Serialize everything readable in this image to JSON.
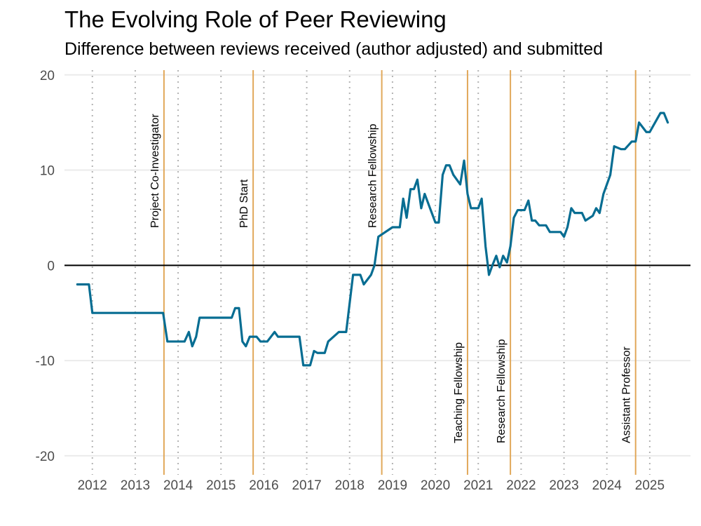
{
  "chart_data": {
    "type": "line",
    "title": "The Evolving Role of Peer Reviewing",
    "subtitle": "Difference between reviews received (author adjusted) and submitted",
    "xlabel": "",
    "ylabel": "",
    "xlim": [
      2011.35,
      2025.95
    ],
    "ylim": [
      -22,
      20.5
    ],
    "grid": true,
    "x_ticks": [
      {
        "value": 2012,
        "label": "2012"
      },
      {
        "value": 2013,
        "label": "2013"
      },
      {
        "value": 2014,
        "label": "2014"
      },
      {
        "value": 2015,
        "label": "2015"
      },
      {
        "value": 2016,
        "label": "2016"
      },
      {
        "value": 2017,
        "label": "2017"
      },
      {
        "value": 2018,
        "label": "2018"
      },
      {
        "value": 2019,
        "label": "2019"
      },
      {
        "value": 2020,
        "label": "2020"
      },
      {
        "value": 2021,
        "label": "2021"
      },
      {
        "value": 2022,
        "label": "2022"
      },
      {
        "value": 2023,
        "label": "2023"
      },
      {
        "value": 2024,
        "label": "2024"
      },
      {
        "value": 2025,
        "label": "2025"
      }
    ],
    "y_ticks": [
      {
        "value": 20,
        "label": "20"
      },
      {
        "value": 10,
        "label": "10"
      },
      {
        "value": 0,
        "label": "0"
      },
      {
        "value": -10,
        "label": "-10"
      },
      {
        "value": -20,
        "label": "-20"
      }
    ],
    "colors": {
      "line": "#076d92",
      "event": "#e1a85a",
      "zero_line": "#000000",
      "grid": "#ebebeb",
      "year_grid": "#b3b3b3"
    },
    "events": [
      {
        "x": 2013.67,
        "label": "Project Co-Investigator",
        "position": "top"
      },
      {
        "x": 2015.75,
        "label": "PhD Start",
        "position": "top"
      },
      {
        "x": 2018.75,
        "label": "Research Fellowship",
        "position": "top"
      },
      {
        "x": 2020.75,
        "label": "Teaching Fellowship",
        "position": "bottom"
      },
      {
        "x": 2021.75,
        "label": "Research Fellowship",
        "position": "bottom"
      },
      {
        "x": 2024.67,
        "label": "Assistant Professor",
        "position": "bottom"
      }
    ],
    "series": [
      {
        "name": "Difference",
        "x": [
          2011.65,
          2011.92,
          2012.0,
          2013.65,
          2013.75,
          2014.15,
          2014.25,
          2014.33,
          2014.42,
          2014.5,
          2014.58,
          2015.25,
          2015.33,
          2015.42,
          2015.5,
          2015.58,
          2015.67,
          2015.75,
          2015.83,
          2015.92,
          2016.0,
          2016.08,
          2016.25,
          2016.33,
          2016.42,
          2016.5,
          2016.83,
          2016.92,
          2017.08,
          2017.17,
          2017.25,
          2017.42,
          2017.5,
          2017.75,
          2017.92,
          2018.08,
          2018.17,
          2018.25,
          2018.33,
          2018.5,
          2018.58,
          2018.67,
          2019.0,
          2019.08,
          2019.17,
          2019.25,
          2019.33,
          2019.42,
          2019.5,
          2019.58,
          2019.67,
          2019.75,
          2020.0,
          2020.08,
          2020.17,
          2020.25,
          2020.33,
          2020.42,
          2020.58,
          2020.67,
          2020.75,
          2020.83,
          2021.0,
          2021.08,
          2021.17,
          2021.25,
          2021.33,
          2021.42,
          2021.5,
          2021.58,
          2021.67,
          2021.75,
          2021.83,
          2021.92,
          2022.0,
          2022.08,
          2022.17,
          2022.25,
          2022.33,
          2022.42,
          2022.58,
          2022.67,
          2022.92,
          2023.0,
          2023.08,
          2023.17,
          2023.25,
          2023.42,
          2023.5,
          2023.67,
          2023.75,
          2023.83,
          2023.92,
          2024.0,
          2024.08,
          2024.17,
          2024.33,
          2024.42,
          2024.58,
          2024.67,
          2024.75,
          2024.92,
          2025.0,
          2025.25,
          2025.33,
          2025.42
        ],
        "y": [
          -2,
          -2,
          -5,
          -5,
          -8,
          -8,
          -7,
          -8.5,
          -7.5,
          -5.5,
          -5.5,
          -5.5,
          -4.5,
          -4.5,
          -8,
          -8.5,
          -7.5,
          -7.5,
          -7.5,
          -8,
          -8,
          -8,
          -7,
          -7.5,
          -7.5,
          -7.5,
          -7.5,
          -10.5,
          -10.5,
          -9,
          -9.2,
          -9.2,
          -8,
          -7,
          -7,
          -1,
          -1,
          -1,
          -2,
          -1,
          0,
          3,
          4,
          4,
          4,
          7,
          5,
          8,
          8,
          9,
          6,
          7.5,
          4.5,
          4.5,
          9.5,
          10.5,
          10.5,
          9.5,
          8.5,
          11,
          7.5,
          6,
          6,
          7,
          2,
          -1,
          0,
          1,
          -0.2,
          1,
          0.3,
          2,
          5,
          5.8,
          5.8,
          5.8,
          6.8,
          4.7,
          4.7,
          4.2,
          4.2,
          3.5,
          3.5,
          3,
          4,
          6,
          5.5,
          5.5,
          4.7,
          5.2,
          6,
          5.5,
          7.5,
          8.5,
          9.5,
          12.5,
          12.2,
          12.2,
          13,
          13,
          15,
          14,
          14,
          16,
          16,
          15
        ]
      }
    ]
  }
}
